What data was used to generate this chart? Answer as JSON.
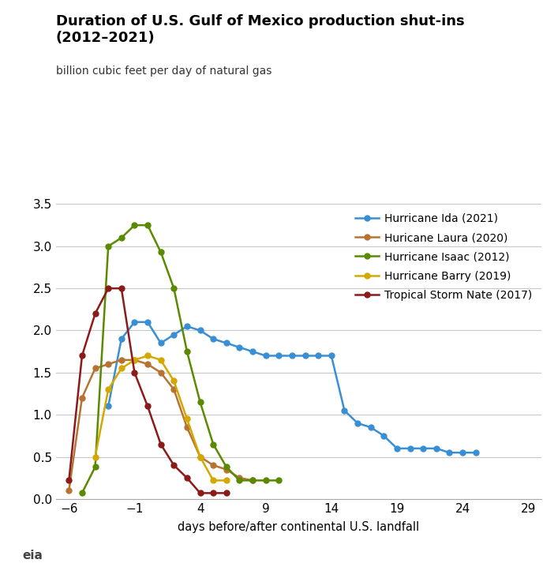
{
  "title_line1": "Duration of U.S. Gulf of Mexico production shut-ins",
  "title_line2": "(2012–2021)",
  "subtitle": "billion cubic feet per day of natural gas",
  "xlabel": "days before/after continental U.S. landfall",
  "xlim": [
    -7,
    30
  ],
  "ylim": [
    0,
    3.5
  ],
  "xticks": [
    -6,
    -1,
    4,
    9,
    14,
    19,
    24,
    29
  ],
  "yticks": [
    0.0,
    0.5,
    1.0,
    1.5,
    2.0,
    2.5,
    3.0,
    3.5
  ],
  "series": {
    "Hurricane Ida (2021)": {
      "color": "#3a8fd4",
      "x": [
        -3,
        -2,
        -1,
        0,
        1,
        2,
        3,
        4,
        5,
        6,
        7,
        8,
        9,
        10,
        11,
        12,
        13,
        14,
        15,
        16,
        17,
        18,
        19,
        20,
        21,
        22,
        23,
        24,
        25
      ],
      "y": [
        1.1,
        1.9,
        2.1,
        2.1,
        1.85,
        1.95,
        2.05,
        2.0,
        1.9,
        1.85,
        1.8,
        1.75,
        1.7,
        1.7,
        1.7,
        1.7,
        1.7,
        1.7,
        1.05,
        0.9,
        0.85,
        0.75,
        0.6,
        0.6,
        0.6,
        0.6,
        0.55,
        0.55,
        0.55
      ]
    },
    "Huricane Laura (2020)": {
      "color": "#b87333",
      "x": [
        -6,
        -5,
        -4,
        -3,
        -2,
        -1,
        0,
        1,
        2,
        3,
        4,
        5,
        6,
        7,
        8
      ],
      "y": [
        0.1,
        1.2,
        1.55,
        1.6,
        1.65,
        1.65,
        1.6,
        1.5,
        1.3,
        0.85,
        0.5,
        0.4,
        0.35,
        0.25,
        0.22
      ]
    },
    "Hurricane Isaac (2012)": {
      "color": "#5a8a00",
      "x": [
        -5,
        -4,
        -3,
        -2,
        -1,
        0,
        1,
        2,
        3,
        4,
        5,
        6,
        7,
        8,
        9,
        10
      ],
      "y": [
        0.07,
        0.38,
        3.0,
        3.1,
        3.25,
        3.25,
        2.93,
        2.5,
        1.75,
        1.15,
        0.65,
        0.38,
        0.22,
        0.22,
        0.22,
        0.22
      ]
    },
    "Hurricane Barry (2019)": {
      "color": "#d4a800",
      "x": [
        -4,
        -3,
        -2,
        -1,
        0,
        1,
        2,
        3,
        4,
        5,
        6
      ],
      "y": [
        0.5,
        1.3,
        1.55,
        1.65,
        1.7,
        1.65,
        1.4,
        0.95,
        0.5,
        0.22,
        0.22
      ]
    },
    "Tropical Storm Nate (2017)": {
      "color": "#8b1a1a",
      "x": [
        -6,
        -5,
        -4,
        -3,
        -2,
        -1,
        0,
        1,
        2,
        3,
        4,
        5,
        6
      ],
      "y": [
        0.22,
        1.7,
        2.2,
        2.5,
        2.5,
        1.5,
        1.1,
        0.65,
        0.4,
        0.25,
        0.07,
        0.07,
        0.07
      ]
    }
  },
  "background_color": "#ffffff",
  "grid_color": "#c8c8c8",
  "title_fontsize": 13,
  "subtitle_fontsize": 10,
  "tick_fontsize": 11,
  "xlabel_fontsize": 10.5
}
